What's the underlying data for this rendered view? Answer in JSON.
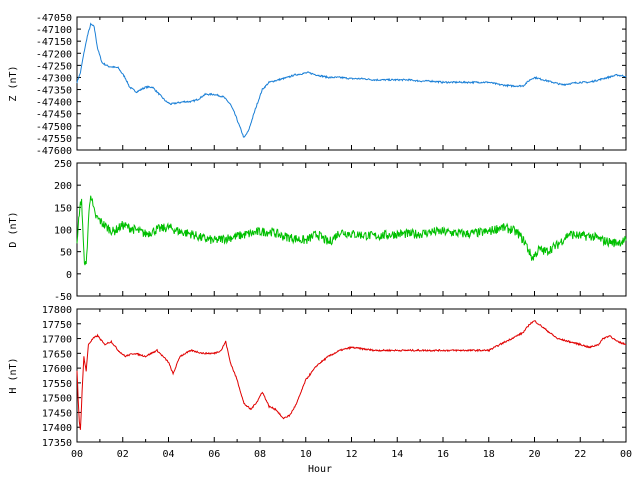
{
  "chart_data": [
    {
      "type": "line",
      "ylabel": "Z (nT)",
      "color": "#1a7fd6",
      "ylim": [
        -47600,
        -47050
      ],
      "yticks": [
        -47050,
        -47100,
        -47150,
        -47200,
        -47250,
        -47300,
        -47350,
        -47400,
        -47450,
        -47500,
        -47550,
        -47600
      ],
      "series": [
        {
          "x": [
            0,
            0.15,
            0.3,
            0.45,
            0.6,
            0.75,
            0.9,
            1.1,
            1.4,
            1.8,
            2.1,
            2.3,
            2.6,
            3.0,
            3.3,
            3.6,
            3.9,
            4.1,
            4.4,
            4.7,
            5.0,
            5.3,
            5.6,
            6.0,
            6.4,
            6.7,
            6.9,
            7.1,
            7.3,
            7.5,
            7.8,
            8.1,
            8.4,
            8.8,
            9.2,
            9.5,
            9.8,
            10.1,
            10.5,
            11.0,
            11.5,
            12.0,
            12.5,
            13.0,
            13.5,
            14.0,
            14.5,
            15.0,
            15.5,
            16.0,
            16.5,
            17.0,
            17.5,
            18.0,
            18.5,
            19.0,
            19.5,
            19.8,
            20.0,
            20.4,
            20.8,
            21.2,
            21.6,
            22.0,
            22.4,
            22.8,
            23.2,
            23.6,
            24.0
          ],
          "values": [
            -47320,
            -47280,
            -47200,
            -47130,
            -47080,
            -47090,
            -47180,
            -47240,
            -47255,
            -47260,
            -47300,
            -47340,
            -47360,
            -47340,
            -47340,
            -47370,
            -47400,
            -47410,
            -47405,
            -47400,
            -47400,
            -47390,
            -47370,
            -47370,
            -47380,
            -47410,
            -47450,
            -47500,
            -47550,
            -47520,
            -47430,
            -47350,
            -47320,
            -47310,
            -47300,
            -47290,
            -47285,
            -47280,
            -47290,
            -47300,
            -47300,
            -47305,
            -47305,
            -47310,
            -47310,
            -47310,
            -47310,
            -47315,
            -47315,
            -47320,
            -47320,
            -47320,
            -47320,
            -47320,
            -47330,
            -47335,
            -47335,
            -47310,
            -47300,
            -47310,
            -47320,
            -47330,
            -47325,
            -47320,
            -47320,
            -47310,
            -47300,
            -47290,
            -47295
          ]
        }
      ]
    },
    {
      "type": "line",
      "ylabel": "D (nT)",
      "color": "#00c000",
      "ylim": [
        -50,
        250
      ],
      "yticks": [
        250,
        200,
        150,
        100,
        50,
        0,
        -50
      ],
      "series": [
        {
          "x": [
            0,
            0.1,
            0.2,
            0.3,
            0.4,
            0.5,
            0.6,
            0.7,
            0.8,
            1.0,
            1.3,
            1.6,
            2.0,
            2.5,
            3.0,
            3.5,
            4.0,
            4.5,
            5.0,
            5.5,
            6.0,
            6.5,
            7.0,
            7.5,
            8.0,
            8.5,
            9.0,
            9.5,
            10.0,
            10.5,
            11.0,
            11.5,
            12.0,
            13.0,
            14.0,
            15.0,
            15.5,
            16.0,
            17.0,
            18.0,
            18.5,
            19.0,
            19.3,
            19.6,
            19.9,
            20.2,
            20.5,
            21.0,
            21.5,
            22.0,
            22.5,
            23.0,
            23.5,
            24.0
          ],
          "values": [
            60,
            140,
            170,
            40,
            15,
            120,
            185,
            150,
            130,
            120,
            105,
            95,
            110,
            100,
            90,
            100,
            105,
            95,
            90,
            80,
            75,
            80,
            85,
            90,
            95,
            95,
            85,
            80,
            75,
            90,
            70,
            95,
            90,
            85,
            90,
            90,
            95,
            95,
            90,
            95,
            105,
            100,
            90,
            70,
            35,
            55,
            50,
            65,
            90,
            85,
            85,
            75,
            70,
            75
          ]
        }
      ]
    },
    {
      "type": "line",
      "ylabel": "H (nT)",
      "xlabel": "Hour",
      "color": "#e00000",
      "ylim": [
        17350,
        17800
      ],
      "yticks": [
        17800,
        17750,
        17700,
        17650,
        17600,
        17550,
        17500,
        17450,
        17400,
        17350
      ],
      "xticks": [
        "00",
        "02",
        "04",
        "06",
        "08",
        "10",
        "12",
        "14",
        "16",
        "18",
        "20",
        "22",
        "00"
      ],
      "series": [
        {
          "x": [
            0,
            0.05,
            0.1,
            0.15,
            0.2,
            0.3,
            0.4,
            0.5,
            0.7,
            0.9,
            1.2,
            1.5,
            1.8,
            2.1,
            2.5,
            3.0,
            3.5,
            4.0,
            4.2,
            4.5,
            5.0,
            5.5,
            6.0,
            6.3,
            6.5,
            6.7,
            7.0,
            7.3,
            7.6,
            7.9,
            8.1,
            8.4,
            8.7,
            9.0,
            9.3,
            9.6,
            10.0,
            10.5,
            11.0,
            11.5,
            12.0,
            13.0,
            14.0,
            15.0,
            16.0,
            17.0,
            18.0,
            18.5,
            19.0,
            19.5,
            19.8,
            20.0,
            20.5,
            21.0,
            21.5,
            22.0,
            22.4,
            22.8,
            23.0,
            23.3,
            23.6,
            24.0
          ],
          "values": [
            17590,
            17500,
            17420,
            17390,
            17480,
            17640,
            17590,
            17680,
            17700,
            17710,
            17680,
            17690,
            17660,
            17640,
            17650,
            17640,
            17660,
            17620,
            17580,
            17640,
            17660,
            17650,
            17650,
            17660,
            17690,
            17620,
            17560,
            17480,
            17460,
            17490,
            17520,
            17470,
            17460,
            17430,
            17440,
            17480,
            17560,
            17610,
            17640,
            17660,
            17670,
            17660,
            17660,
            17660,
            17660,
            17660,
            17660,
            17680,
            17700,
            17720,
            17750,
            17760,
            17730,
            17700,
            17690,
            17680,
            17670,
            17680,
            17700,
            17710,
            17690,
            17680
          ]
        }
      ]
    }
  ]
}
